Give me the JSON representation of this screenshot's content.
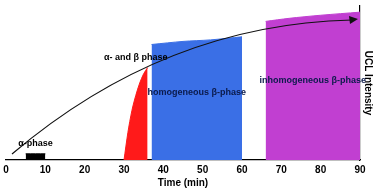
{
  "chart_data": {
    "type": "area",
    "x_label": "Time (min)",
    "y_label": "UCL Intensity",
    "xlim": [
      0,
      90
    ],
    "xticks": [
      0,
      10,
      20,
      30,
      40,
      50,
      60,
      70,
      80,
      90
    ],
    "ylim": [
      0,
      100
    ],
    "grid": false,
    "tick_labels": "x",
    "series": [
      {
        "name": "α-phase",
        "color": "#000000",
        "x": [
          5,
          10
        ],
        "values": [
          4,
          4
        ]
      },
      {
        "name": "α- and β phase",
        "color": "#ff1a1a",
        "x": [
          30,
          31,
          32,
          33,
          34,
          35,
          36
        ],
        "values": [
          0,
          18,
          32,
          42,
          50,
          56,
          60
        ]
      },
      {
        "name": "homogeneous β-phase",
        "color": "#3a6fe6",
        "x": [
          37,
          45,
          52,
          60
        ],
        "values": [
          75,
          77,
          78,
          80
        ]
      },
      {
        "name": "inhomogeneous β-phase",
        "color": "#c13fd1",
        "x": [
          66,
          72,
          80,
          90
        ],
        "values": [
          90,
          92,
          94,
          96
        ]
      }
    ]
  }
}
